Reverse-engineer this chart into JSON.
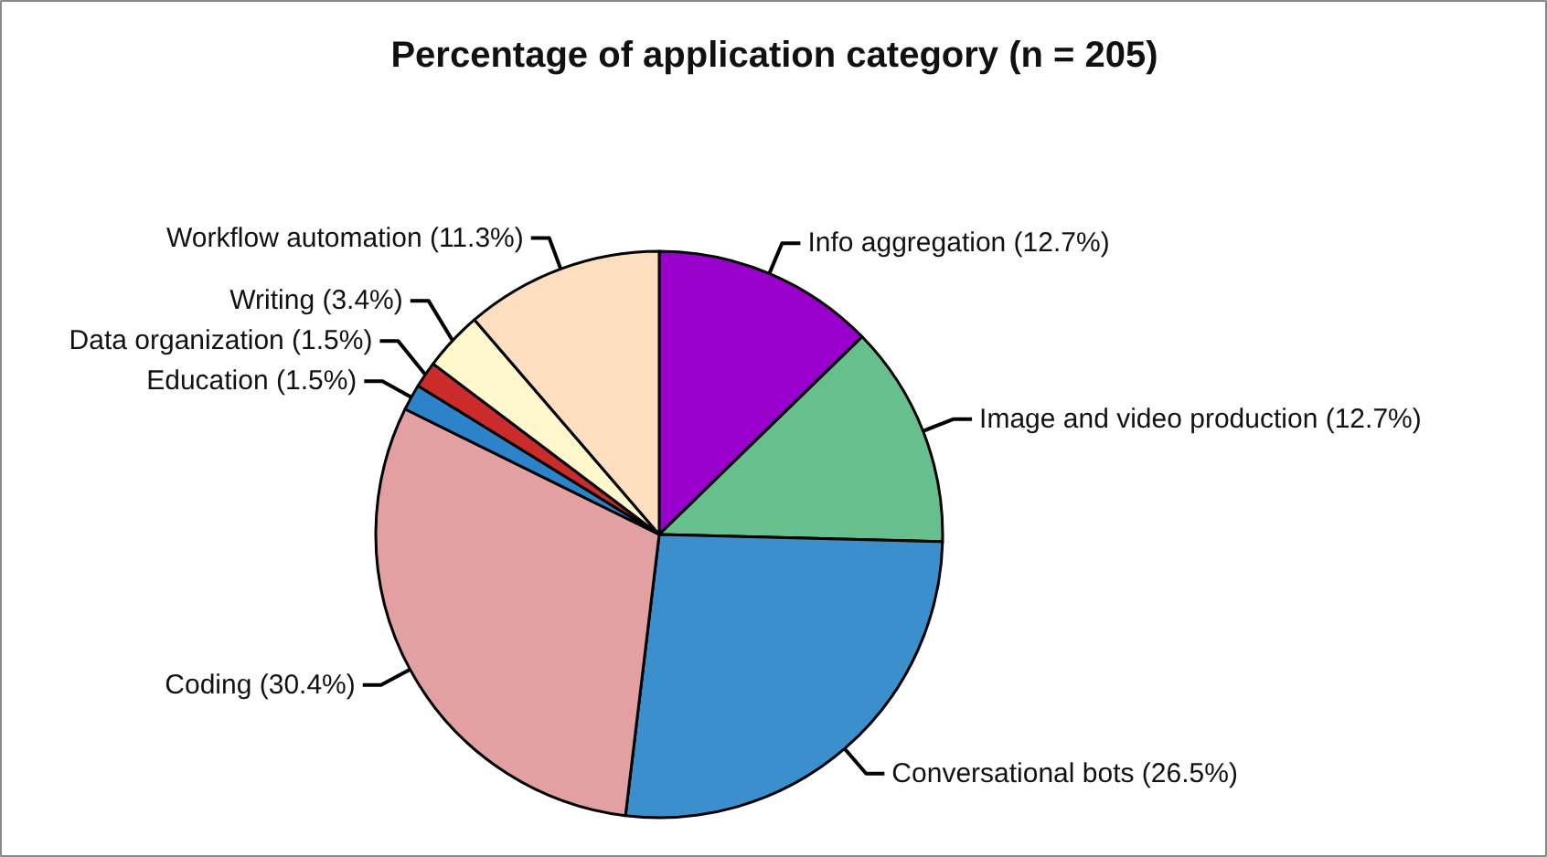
{
  "chart_data": {
    "type": "pie",
    "title": "Percentage of application category (n = 205)",
    "categories": [
      "Info aggregation",
      "Image and video production",
      "Conversational bots",
      "Coding",
      "Education",
      "Data organization",
      "Writing",
      "Workflow automation"
    ],
    "values": [
      12.7,
      12.7,
      26.5,
      30.4,
      1.5,
      1.5,
      3.4,
      11.3
    ],
    "value_labels": [
      "(12.7%)",
      "(12.7%)",
      "(26.5%)",
      "(30.4%)",
      "(1.5%)",
      "(1.5%)",
      "(3.4%)",
      "(11.3%)"
    ],
    "colors": [
      "#9900cc",
      "#66bf8c",
      "#3a8fcc",
      "#e3a0a3",
      "#2d83c9",
      "#cc2b2b",
      "#fff8cc",
      "#fddfbf"
    ]
  }
}
